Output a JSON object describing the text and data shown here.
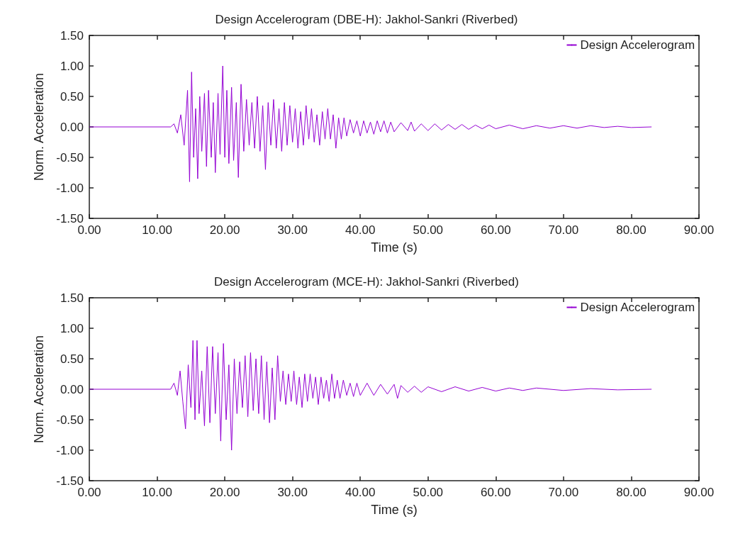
{
  "chart_data": [
    {
      "type": "line",
      "title": "Design Accelerogram (DBE-H): Jakhol-Sankri (Riverbed)",
      "xlabel": "Time (s)",
      "ylabel": "Norm. Acceleration",
      "legend": "top right",
      "grid": false,
      "marker": "none",
      "line_style": "solid",
      "xlim": [
        0,
        90
      ],
      "xticks": [
        {
          "value": 0,
          "label": "0.00"
        },
        {
          "value": 10,
          "label": "10.00"
        },
        {
          "value": 20,
          "label": "20.00"
        },
        {
          "value": 30,
          "label": "30.00"
        },
        {
          "value": 40,
          "label": "40.00"
        },
        {
          "value": 50,
          "label": "50.00"
        },
        {
          "value": 60,
          "label": "60.00"
        },
        {
          "value": 70,
          "label": "70.00"
        },
        {
          "value": 80,
          "label": "80.00"
        },
        {
          "value": 90,
          "label": "90.00"
        }
      ],
      "ylim": [
        -1.5,
        1.5
      ],
      "yticks": [
        {
          "value": -1.5,
          "label": "-1.50"
        },
        {
          "value": -1,
          "label": "-1.00"
        },
        {
          "value": -0.5,
          "label": "-0.50"
        },
        {
          "value": 0,
          "label": "0.00"
        },
        {
          "value": 0.5,
          "label": "0.50"
        },
        {
          "value": 1,
          "label": "1.00"
        },
        {
          "value": 1.5,
          "label": "1.50"
        }
      ],
      "series": [
        {
          "name": "Design Accelerogram",
          "color": "#9400d3",
          "x": [
            0,
            12,
            12.5,
            13,
            13.5,
            14,
            14.5,
            14.8,
            15.1,
            15.4,
            15.7,
            16,
            16.3,
            16.6,
            17,
            17.3,
            17.6,
            18,
            18.3,
            18.6,
            19,
            19.3,
            19.7,
            20,
            20.3,
            20.6,
            21,
            21.3,
            21.7,
            22,
            22.4,
            22.8,
            23.2,
            23.6,
            24,
            24.4,
            24.8,
            25.2,
            25.6,
            26,
            26.4,
            26.8,
            27.2,
            27.6,
            28,
            28.4,
            28.8,
            29.2,
            29.6,
            30,
            30.4,
            30.8,
            31.2,
            31.6,
            32,
            32.4,
            32.8,
            33.2,
            33.6,
            34,
            34.4,
            34.8,
            35.2,
            35.6,
            36,
            36.4,
            36.8,
            37.2,
            37.6,
            38,
            38.5,
            39,
            39.5,
            40,
            40.5,
            41,
            41.5,
            42,
            42.5,
            43,
            43.5,
            44,
            44.5,
            45,
            46,
            47,
            47.5,
            48,
            49,
            50,
            51,
            52,
            53,
            54,
            55,
            56,
            57,
            58,
            59,
            60,
            62,
            64,
            66,
            68,
            70,
            72,
            74,
            76,
            78,
            80,
            83
          ],
          "values": [
            0,
            0,
            0.05,
            -0.1,
            0.2,
            -0.3,
            0.6,
            -0.9,
            0.9,
            -0.5,
            0.3,
            -0.85,
            0.5,
            -0.4,
            0.55,
            -0.65,
            0.6,
            -0.5,
            0.4,
            -0.75,
            0.55,
            -0.45,
            1.0,
            -0.5,
            0.6,
            -0.6,
            0.65,
            -0.55,
            0.4,
            -0.83,
            0.7,
            -0.4,
            0.45,
            -0.3,
            0.4,
            -0.35,
            0.5,
            -0.4,
            0.35,
            -0.7,
            0.4,
            -0.3,
            0.45,
            -0.35,
            0.3,
            -0.4,
            0.4,
            -0.3,
            0.35,
            -0.25,
            0.3,
            -0.35,
            0.25,
            -0.3,
            0.35,
            -0.2,
            0.3,
            -0.25,
            0.2,
            -0.3,
            0.25,
            -0.2,
            0.3,
            -0.2,
            0.2,
            -0.35,
            0.15,
            -0.2,
            0.15,
            -0.15,
            0.12,
            -0.1,
            0.1,
            -0.15,
            0.1,
            -0.1,
            0.08,
            -0.12,
            0.1,
            -0.08,
            0.1,
            -0.1,
            0.08,
            -0.08,
            0.07,
            -0.06,
            0.08,
            -0.07,
            0.05,
            -0.06,
            0.05,
            -0.05,
            0.04,
            -0.04,
            0.04,
            -0.04,
            0.03,
            -0.03,
            0.03,
            -0.03,
            0.03,
            -0.03,
            0.02,
            -0.02,
            0.02,
            -0.02,
            0.02,
            -0.01,
            0.01,
            -0.01,
            0
          ]
        }
      ]
    },
    {
      "type": "line",
      "title": "Design Accelerogram (MCE-H): Jakhol-Sankri (Riverbed)",
      "xlabel": "Time (s)",
      "ylabel": "Norm. Acceleration",
      "legend": "top right",
      "grid": false,
      "marker": "none",
      "line_style": "solid",
      "xlim": [
        0,
        90
      ],
      "xticks": [
        {
          "value": 0,
          "label": "0.00"
        },
        {
          "value": 10,
          "label": "10.00"
        },
        {
          "value": 20,
          "label": "20.00"
        },
        {
          "value": 30,
          "label": "30.00"
        },
        {
          "value": 40,
          "label": "40.00"
        },
        {
          "value": 50,
          "label": "50.00"
        },
        {
          "value": 60,
          "label": "60.00"
        },
        {
          "value": 70,
          "label": "70.00"
        },
        {
          "value": 80,
          "label": "80.00"
        },
        {
          "value": 90,
          "label": "90.00"
        }
      ],
      "ylim": [
        -1.5,
        1.5
      ],
      "yticks": [
        {
          "value": -1.5,
          "label": "-1.50"
        },
        {
          "value": -1,
          "label": "-1.00"
        },
        {
          "value": -0.5,
          "label": "-0.50"
        },
        {
          "value": 0,
          "label": "0.00"
        },
        {
          "value": 0.5,
          "label": "0.50"
        },
        {
          "value": 1,
          "label": "1.00"
        },
        {
          "value": 1.5,
          "label": "1.50"
        }
      ],
      "series": [
        {
          "name": "Design Accelerogram",
          "color": "#9400d3",
          "x": [
            0,
            12,
            12.5,
            13,
            13.4,
            13.8,
            14.2,
            14.6,
            15,
            15.3,
            15.6,
            15.9,
            16.2,
            16.6,
            17,
            17.4,
            17.8,
            18.2,
            18.6,
            19,
            19.4,
            19.8,
            20.2,
            20.6,
            21,
            21.4,
            21.8,
            22.2,
            22.6,
            23,
            23.4,
            23.8,
            24.2,
            24.6,
            25,
            25.4,
            25.8,
            26.2,
            26.6,
            27,
            27.4,
            27.8,
            28.2,
            28.6,
            29,
            29.4,
            29.8,
            30.2,
            30.6,
            31,
            31.4,
            31.8,
            32.2,
            32.6,
            33,
            33.4,
            33.8,
            34.2,
            34.6,
            35,
            35.4,
            35.8,
            36.2,
            36.6,
            37,
            37.5,
            38,
            38.5,
            39,
            39.5,
            40,
            41,
            42,
            43,
            44,
            45,
            45.5,
            46,
            47,
            48,
            49,
            50,
            52,
            54,
            56,
            58,
            60,
            62,
            64,
            66,
            70,
            74,
            78,
            83
          ],
          "values": [
            0,
            0,
            0.1,
            -0.1,
            0.3,
            -0.2,
            -0.65,
            0.4,
            -0.3,
            0.8,
            -0.5,
            0.8,
            -0.4,
            0.3,
            -0.6,
            0.7,
            -0.55,
            0.7,
            -0.4,
            0.6,
            -0.85,
            0.75,
            -0.5,
            0.4,
            -1.0,
            0.5,
            -0.4,
            0.45,
            -0.3,
            0.55,
            -0.45,
            0.6,
            -0.35,
            0.5,
            -0.4,
            0.55,
            -0.5,
            0.45,
            -0.55,
            0.35,
            -0.5,
            0.55,
            -0.2,
            0.3,
            -0.25,
            0.25,
            -0.2,
            0.3,
            -0.25,
            0.2,
            -0.3,
            0.25,
            -0.2,
            0.25,
            -0.15,
            0.2,
            -0.25,
            0.2,
            -0.15,
            0.15,
            -0.2,
            0.25,
            -0.15,
            0.15,
            -0.15,
            0.15,
            -0.1,
            0.1,
            -0.12,
            0.1,
            -0.1,
            0.1,
            -0.1,
            0.08,
            -0.08,
            0.08,
            -0.15,
            0.06,
            -0.05,
            0.05,
            -0.05,
            0.04,
            -0.04,
            0.04,
            -0.03,
            0.03,
            -0.03,
            0.02,
            -0.02,
            0.02,
            -0.02,
            0.01,
            -0.01,
            0
          ]
        }
      ]
    }
  ]
}
